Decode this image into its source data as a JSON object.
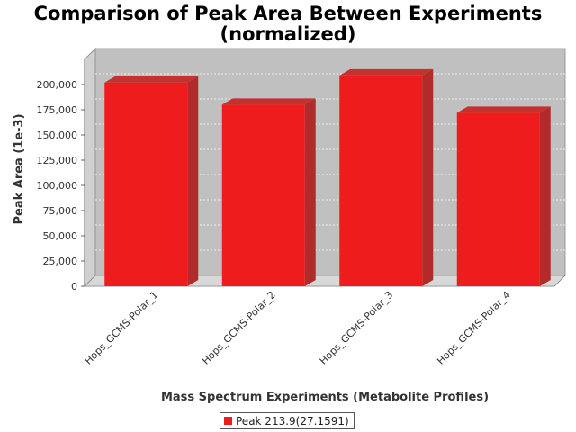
{
  "chart_data": {
    "type": "bar",
    "title_line1": "Comparison of Peak Area Between Experiments",
    "title_line2": "(normalized)",
    "xlabel": "Mass Spectrum Experiments (Metabolite Profiles)",
    "ylabel": "Peak Area (1e-3)",
    "categories": [
      "Hops_GCMS-Polar_1",
      "Hops_GCMS-Polar_2",
      "Hops_GCMS-Polar_3",
      "Hops_GCMS-Polar_4"
    ],
    "series": [
      {
        "name": "Peak 213.9(27.1591)",
        "values": [
          202000,
          180000,
          209000,
          172000
        ],
        "color": "#ee1c1c"
      }
    ],
    "ylim": [
      0,
      225000
    ],
    "yticks": [
      0,
      25000,
      50000,
      75000,
      100000,
      125000,
      150000,
      175000,
      200000
    ],
    "ytick_labels": [
      "0",
      "25,000",
      "50,000",
      "75,000",
      "100,000",
      "125,000",
      "150,000",
      "175,000",
      "200,000"
    ],
    "grid": true,
    "legend_position": "bottom-center",
    "plot_background": "#c0c0c0"
  }
}
